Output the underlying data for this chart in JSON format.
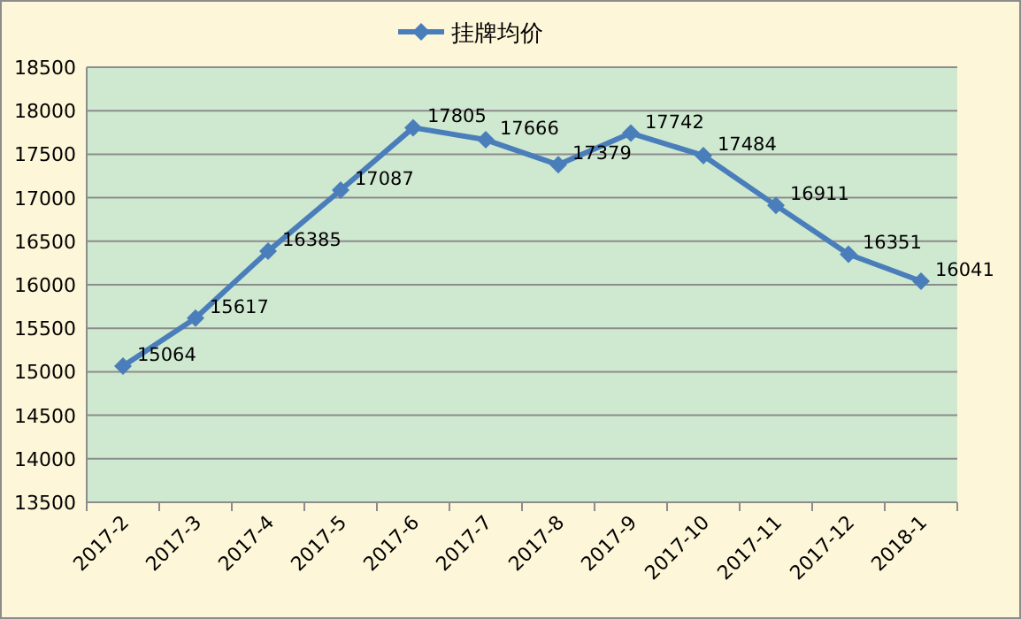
{
  "chart_data": {
    "type": "line",
    "categories": [
      "2017-2",
      "2017-3",
      "2017-4",
      "2017-5",
      "2017-6",
      "2017-7",
      "2017-8",
      "2017-9",
      "2017-10",
      "2017-11",
      "2017-12",
      "2018-1"
    ],
    "series": [
      {
        "name": "挂牌均价",
        "color": "#4a7ebb",
        "values": [
          15064,
          15617,
          16385,
          17087,
          17805,
          17666,
          17379,
          17742,
          17484,
          16911,
          16351,
          16041
        ]
      }
    ],
    "ylim": [
      13500,
      18500
    ],
    "yticks": [
      13500,
      14000,
      14500,
      15000,
      15500,
      16000,
      16500,
      17000,
      17500,
      18000,
      18500
    ],
    "grid": "y",
    "legend": "top",
    "marker": "diamond",
    "line_style": "solid",
    "data_labels": true
  }
}
